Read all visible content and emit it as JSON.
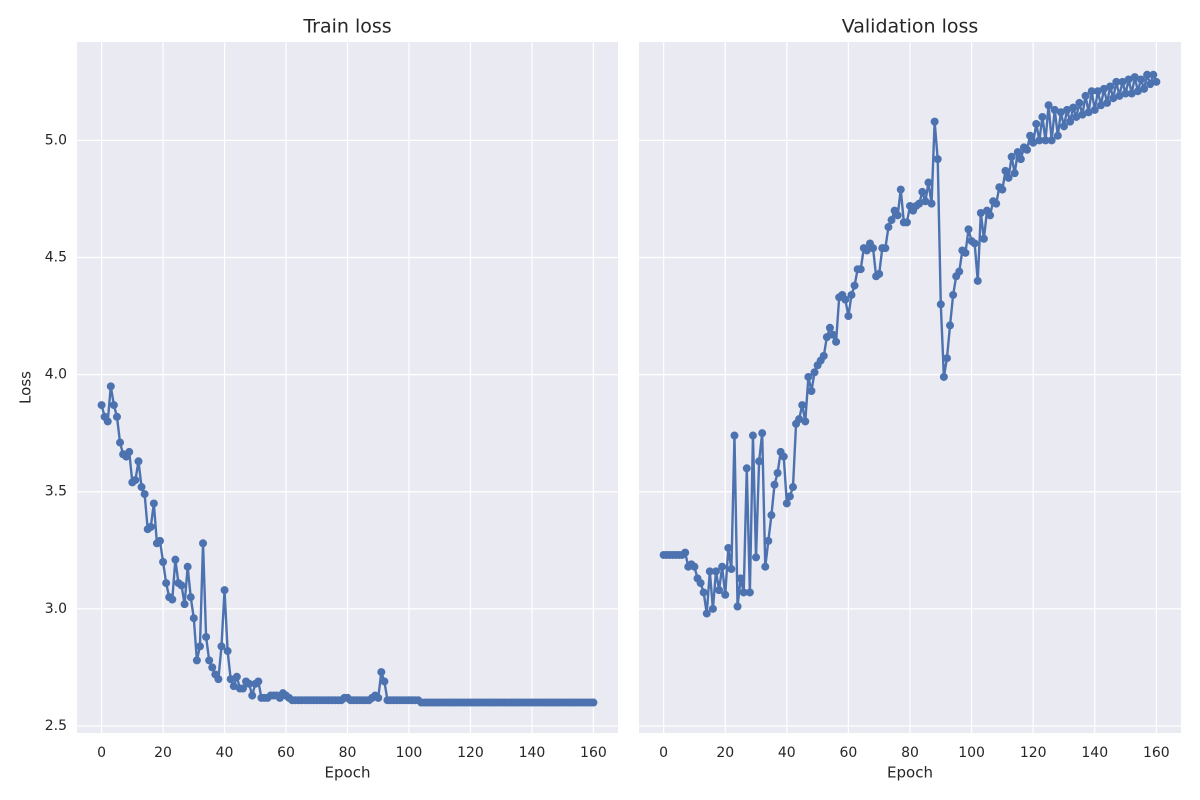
{
  "chart_data": [
    {
      "type": "line",
      "title": "Train loss",
      "xlabel": "Epoch",
      "ylabel": "Loss",
      "x": [
        0,
        1,
        2,
        3,
        4,
        5,
        6,
        7,
        8,
        9,
        10,
        11,
        12,
        13,
        14,
        15,
        16,
        17,
        18,
        19,
        20,
        21,
        22,
        23,
        24,
        25,
        26,
        27,
        28,
        29,
        30,
        31,
        32,
        33,
        34,
        35,
        36,
        37,
        38,
        39,
        40,
        41,
        42,
        43,
        44,
        45,
        46,
        47,
        48,
        49,
        50,
        51,
        52,
        53,
        54,
        55,
        56,
        57,
        58,
        59,
        60,
        61,
        62,
        63,
        64,
        65,
        66,
        67,
        68,
        69,
        70,
        71,
        72,
        73,
        74,
        75,
        76,
        77,
        78,
        79,
        80,
        81,
        82,
        83,
        84,
        85,
        86,
        87,
        88,
        89,
        90,
        91,
        92,
        93,
        94,
        95,
        96,
        97,
        98,
        99,
        100,
        101,
        102,
        103,
        104,
        105,
        106,
        107,
        108,
        109,
        110,
        111,
        112,
        113,
        114,
        115,
        116,
        117,
        118,
        119,
        120,
        121,
        122,
        123,
        124,
        125,
        126,
        127,
        128,
        129,
        130,
        131,
        132,
        133,
        134,
        135,
        136,
        137,
        138,
        139,
        140,
        141,
        142,
        143,
        144,
        145,
        146,
        147,
        148,
        149,
        150,
        151,
        152,
        153,
        154,
        155,
        156,
        157,
        158,
        159,
        160
      ],
      "series": [
        {
          "color": "#4c72b0",
          "values": [
            3.87,
            3.82,
            3.8,
            3.95,
            3.87,
            3.82,
            3.71,
            3.66,
            3.65,
            3.67,
            3.54,
            3.55,
            3.63,
            3.52,
            3.49,
            3.34,
            3.35,
            3.45,
            3.28,
            3.29,
            3.2,
            3.11,
            3.05,
            3.04,
            3.21,
            3.11,
            3.1,
            3.02,
            3.18,
            3.05,
            2.96,
            2.78,
            2.84,
            3.28,
            2.88,
            2.78,
            2.75,
            2.72,
            2.7,
            2.84,
            3.08,
            2.82,
            2.7,
            2.67,
            2.71,
            2.66,
            2.66,
            2.69,
            2.68,
            2.63,
            2.68,
            2.69,
            2.62,
            2.62,
            2.62,
            2.63,
            2.63,
            2.63,
            2.62,
            2.64,
            2.63,
            2.62,
            2.61,
            2.61,
            2.61,
            2.61,
            2.61,
            2.61,
            2.61,
            2.61,
            2.61,
            2.61,
            2.61,
            2.61,
            2.61,
            2.61,
            2.61,
            2.61,
            2.61,
            2.62,
            2.62,
            2.61,
            2.61,
            2.61,
            2.61,
            2.61,
            2.61,
            2.61,
            2.62,
            2.63,
            2.62,
            2.73,
            2.69,
            2.61,
            2.61,
            2.61,
            2.61,
            2.61,
            2.61,
            2.61,
            2.61,
            2.61,
            2.61,
            2.61,
            2.6,
            2.6,
            2.6,
            2.6,
            2.6,
            2.6,
            2.6,
            2.6,
            2.6,
            2.6,
            2.6,
            2.6,
            2.6,
            2.6,
            2.6,
            2.6,
            2.6,
            2.6,
            2.6,
            2.6,
            2.6,
            2.6,
            2.6,
            2.6,
            2.6,
            2.6,
            2.6,
            2.6,
            2.6,
            2.6,
            2.6,
            2.6,
            2.6,
            2.6,
            2.6,
            2.6,
            2.6,
            2.6,
            2.6,
            2.6,
            2.6,
            2.6,
            2.6,
            2.6,
            2.6,
            2.6,
            2.6,
            2.6,
            2.6,
            2.6,
            2.6,
            2.6,
            2.6,
            2.6,
            2.6,
            2.6,
            2.6
          ]
        }
      ],
      "xlim": [
        -8,
        168
      ],
      "xticks": [
        0,
        20,
        40,
        60,
        80,
        100,
        120,
        140,
        160
      ],
      "ylim": [
        2.47,
        5.42
      ],
      "yticks": [
        2.5,
        {
          "value": 3,
          "label": "3.0"
        },
        3.5,
        {
          "value": 4,
          "label": "4.0"
        },
        4.5,
        {
          "value": 5,
          "label": "5.0"
        }
      ],
      "grid": true
    },
    {
      "type": "line",
      "title": "Validation loss",
      "xlabel": "Epoch",
      "x": [
        0,
        1,
        2,
        3,
        4,
        5,
        6,
        7,
        8,
        9,
        10,
        11,
        12,
        13,
        14,
        15,
        16,
        17,
        18,
        19,
        20,
        21,
        22,
        23,
        24,
        25,
        26,
        27,
        28,
        29,
        30,
        31,
        32,
        33,
        34,
        35,
        36,
        37,
        38,
        39,
        40,
        41,
        42,
        43,
        44,
        45,
        46,
        47,
        48,
        49,
        50,
        51,
        52,
        53,
        54,
        55,
        56,
        57,
        58,
        59,
        60,
        61,
        62,
        63,
        64,
        65,
        66,
        67,
        68,
        69,
        70,
        71,
        72,
        73,
        74,
        75,
        76,
        77,
        78,
        79,
        80,
        81,
        82,
        83,
        84,
        85,
        86,
        87,
        88,
        89,
        90,
        91,
        92,
        93,
        94,
        95,
        96,
        97,
        98,
        99,
        100,
        101,
        102,
        103,
        104,
        105,
        106,
        107,
        108,
        109,
        110,
        111,
        112,
        113,
        114,
        115,
        116,
        117,
        118,
        119,
        120,
        121,
        122,
        123,
        124,
        125,
        126,
        127,
        128,
        129,
        130,
        131,
        132,
        133,
        134,
        135,
        136,
        137,
        138,
        139,
        140,
        141,
        142,
        143,
        144,
        145,
        146,
        147,
        148,
        149,
        150,
        151,
        152,
        153,
        154,
        155,
        156,
        157,
        158,
        159,
        160
      ],
      "series": [
        {
          "color": "#4c72b0",
          "values": [
            3.23,
            3.23,
            3.23,
            3.23,
            3.23,
            3.23,
            3.23,
            3.24,
            3.18,
            3.19,
            3.18,
            3.13,
            3.11,
            3.07,
            2.98,
            3.16,
            3.0,
            3.16,
            3.08,
            3.18,
            3.06,
            3.26,
            3.17,
            3.74,
            3.01,
            3.13,
            3.07,
            3.6,
            3.07,
            3.74,
            3.22,
            3.63,
            3.75,
            3.18,
            3.29,
            3.4,
            3.53,
            3.58,
            3.67,
            3.65,
            3.45,
            3.48,
            3.52,
            3.79,
            3.81,
            3.87,
            3.8,
            3.99,
            3.93,
            4.01,
            4.04,
            4.06,
            4.08,
            4.16,
            4.2,
            4.17,
            4.14,
            4.33,
            4.34,
            4.32,
            4.25,
            4.34,
            4.38,
            4.45,
            4.45,
            4.54,
            4.53,
            4.56,
            4.54,
            4.42,
            4.43,
            4.54,
            4.54,
            4.63,
            4.66,
            4.7,
            4.68,
            4.79,
            4.65,
            4.65,
            4.72,
            4.7,
            4.72,
            4.73,
            4.78,
            4.74,
            4.82,
            4.73,
            5.08,
            4.92,
            4.3,
            3.99,
            4.07,
            4.21,
            4.34,
            4.42,
            4.44,
            4.53,
            4.52,
            4.62,
            4.57,
            4.56,
            4.4,
            4.69,
            4.58,
            4.7,
            4.68,
            4.74,
            4.73,
            4.8,
            4.79,
            4.87,
            4.84,
            4.93,
            4.86,
            4.95,
            4.92,
            4.97,
            4.96,
            5.02,
            4.99,
            5.07,
            5.0,
            5.1,
            5.0,
            5.15,
            5.0,
            5.13,
            5.02,
            5.12,
            5.06,
            5.13,
            5.08,
            5.14,
            5.1,
            5.16,
            5.11,
            5.19,
            5.12,
            5.21,
            5.13,
            5.21,
            5.15,
            5.22,
            5.16,
            5.23,
            5.18,
            5.25,
            5.19,
            5.25,
            5.2,
            5.26,
            5.2,
            5.27,
            5.21,
            5.26,
            5.22,
            5.28,
            5.24,
            5.28,
            5.25
          ]
        }
      ],
      "xlim": [
        -8,
        168
      ],
      "xticks": [
        0,
        20,
        40,
        60,
        80,
        100,
        120,
        140,
        160
      ],
      "ylim": [
        2.47,
        5.42
      ],
      "yticks": [
        2.5,
        3,
        3.5,
        4,
        4.5,
        5
      ],
      "grid": true
    }
  ]
}
